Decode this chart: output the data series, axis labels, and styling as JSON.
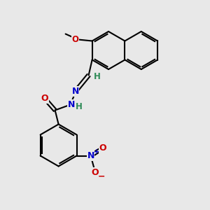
{
  "background_color": "#e8e8e8",
  "bond_color": "#000000",
  "atom_colors": {
    "O": "#cc0000",
    "N": "#0000cc",
    "H": "#2e8b57",
    "C": "#000000",
    "plus": "#0000cc",
    "minus": "#cc0000"
  },
  "figsize": [
    3.0,
    3.0
  ],
  "dpi": 100
}
